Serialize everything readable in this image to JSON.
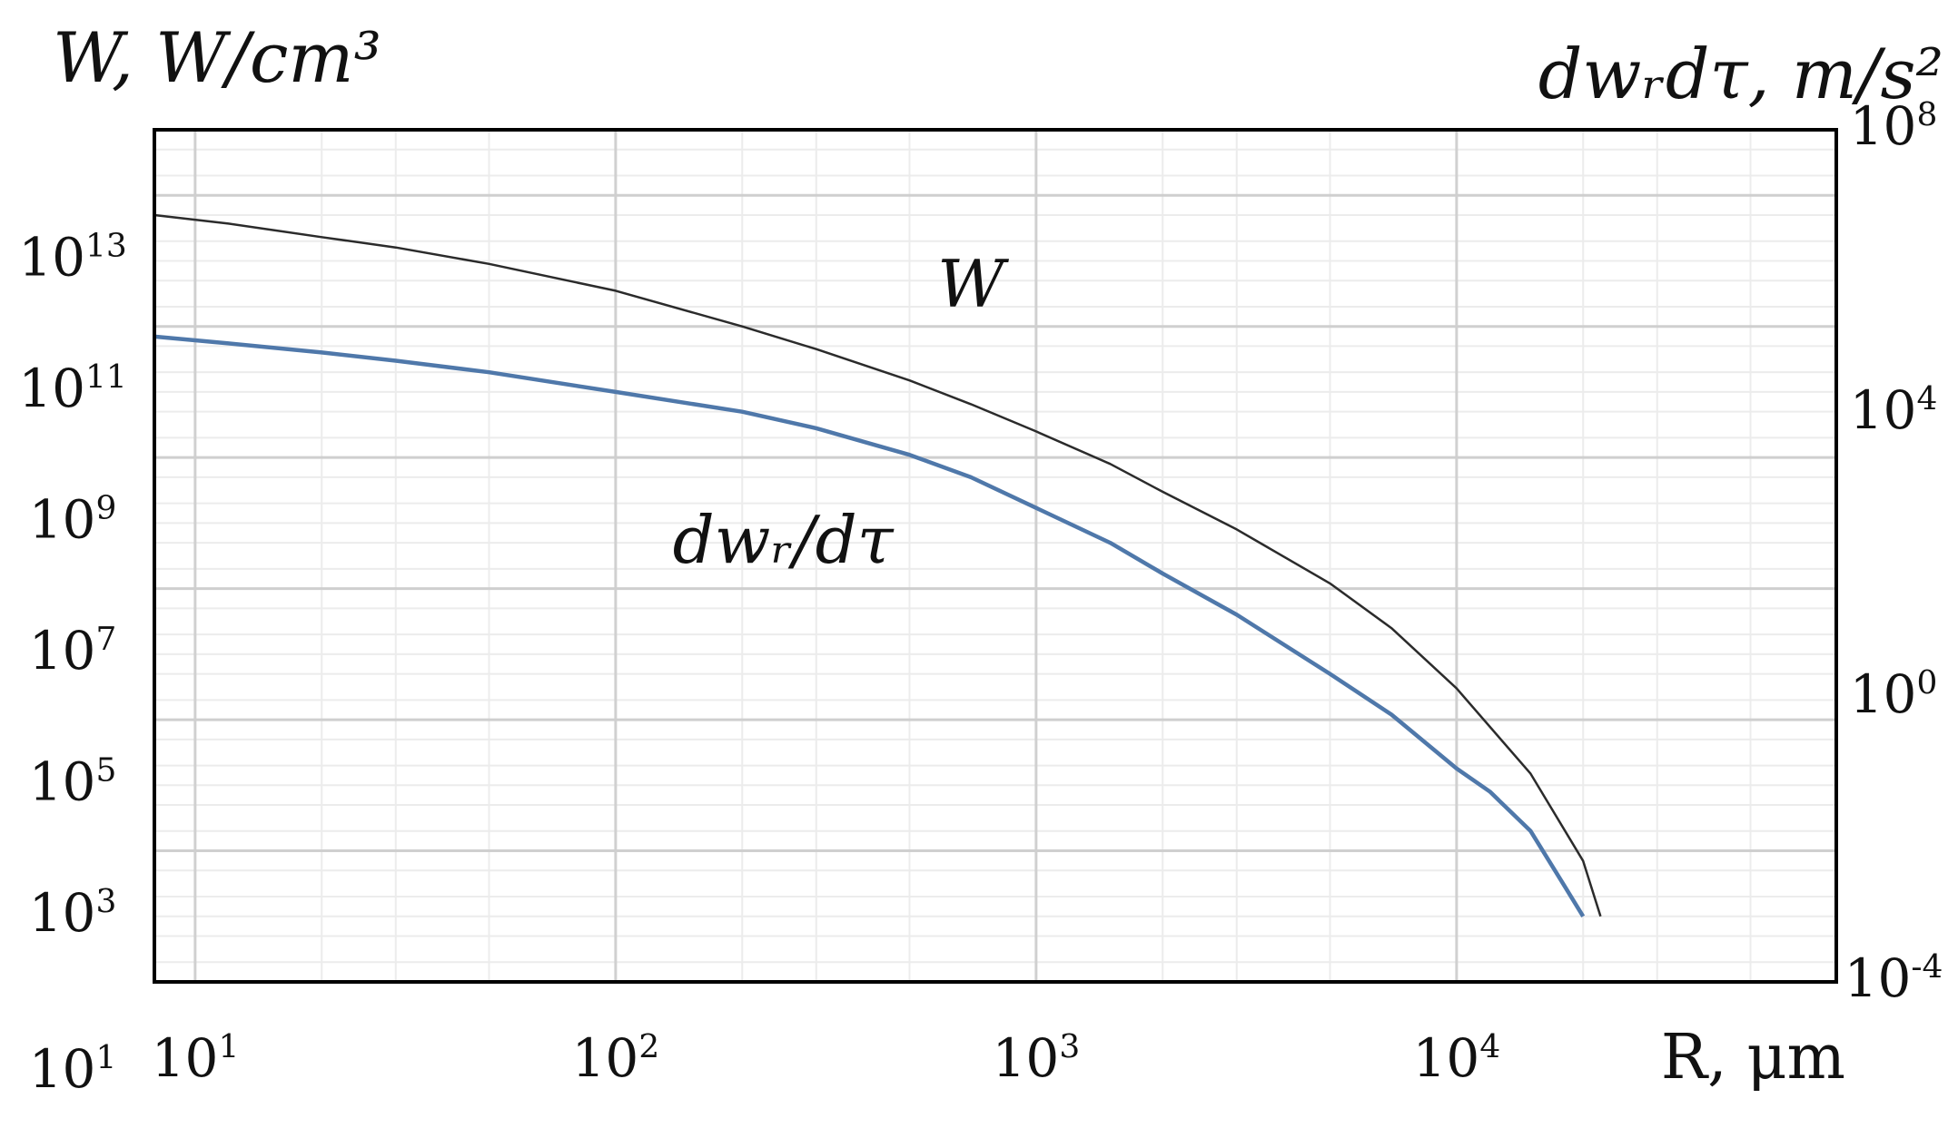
{
  "chart_data": {
    "type": "line",
    "x_scale": "log",
    "y_scale": "log",
    "grid": true,
    "xlabel": "R, μm",
    "ylabel_left": "W, W/cm³",
    "ylabel_right": "dwᵣdτ, m/s²",
    "xlim": [
      8,
      80000
    ],
    "ylim_left": [
      100,
      1000000000000000
    ],
    "ylim_right": [
      0.0001,
      100000000
    ],
    "x_ticks": [
      {
        "value": 10,
        "base": "10",
        "exp": "1"
      },
      {
        "value": 100,
        "base": "10",
        "exp": "2"
      },
      {
        "value": 1000,
        "base": "10",
        "exp": "3"
      },
      {
        "value": 10000,
        "base": "10",
        "exp": "4"
      }
    ],
    "y_ticks_left": [
      {
        "value": 10,
        "base": "10",
        "exp": "1"
      },
      {
        "value": 1000,
        "base": "10",
        "exp": "3"
      },
      {
        "value": 100000,
        "base": "10",
        "exp": "5"
      },
      {
        "value": 10000000,
        "base": "10",
        "exp": "7"
      },
      {
        "value": 1000000000,
        "base": "10",
        "exp": "9"
      },
      {
        "value": 100000000000,
        "base": "10",
        "exp": "11"
      },
      {
        "value": 10000000000000,
        "base": "10",
        "exp": "13"
      }
    ],
    "y_ticks_right": [
      {
        "value": 0.0001,
        "base": "10",
        "exp": "-4"
      },
      {
        "value": 1,
        "base": "10",
        "exp": "0"
      },
      {
        "value": 10000,
        "base": "10",
        "exp": "4"
      },
      {
        "value": 100000000,
        "base": "10",
        "exp": "8"
      }
    ],
    "series": [
      {
        "name": "W",
        "axis": "left",
        "color": "#2b2b2b",
        "points": [
          [
            8,
            50000000000000
          ],
          [
            12,
            37000000000000
          ],
          [
            20,
            23000000000000
          ],
          [
            30,
            16000000000000
          ],
          [
            50,
            9000000000000
          ],
          [
            100,
            3500000000000
          ],
          [
            200,
            1000000000000
          ],
          [
            300,
            450000000000
          ],
          [
            500,
            150000000000
          ],
          [
            700,
            65000000000
          ],
          [
            1000,
            25000000000
          ],
          [
            1500,
            8000000000
          ],
          [
            2000,
            3000000000
          ],
          [
            3000,
            800000000
          ],
          [
            5000,
            120000000
          ],
          [
            7000,
            25000000
          ],
          [
            10000,
            3000000
          ],
          [
            15000,
            150000
          ],
          [
            20000,
            7000
          ],
          [
            22000,
            1000
          ]
        ]
      },
      {
        "name": "dwᵣ/dτ",
        "axis": "left",
        "color": "#4f78aa",
        "points": [
          [
            8,
            700000000000
          ],
          [
            12,
            550000000000
          ],
          [
            20,
            400000000000
          ],
          [
            30,
            300000000000
          ],
          [
            50,
            200000000000
          ],
          [
            100,
            100000000000
          ],
          [
            200,
            50000000000
          ],
          [
            300,
            28000000000
          ],
          [
            500,
            11000000000
          ],
          [
            700,
            5000000000
          ],
          [
            1000,
            1700000000
          ],
          [
            1500,
            500000000
          ],
          [
            2000,
            170000000
          ],
          [
            3000,
            40000000
          ],
          [
            5000,
            5000000
          ],
          [
            7000,
            1200000
          ],
          [
            10000,
            180000
          ],
          [
            12000,
            80000
          ],
          [
            15000,
            20000
          ],
          [
            18000,
            3000
          ],
          [
            20000,
            1000
          ]
        ]
      }
    ],
    "annotations": [
      {
        "text": "W",
        "x": 700,
        "y": 2000000000000
      },
      {
        "text": "dwᵣ/dτ",
        "x": 250,
        "y": 250000000
      }
    ]
  }
}
